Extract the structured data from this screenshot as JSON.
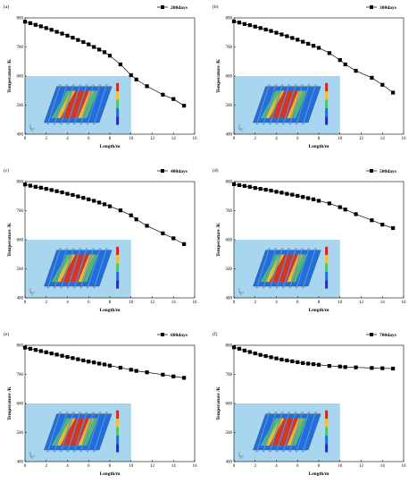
{
  "figure_title": "",
  "colors": {
    "line": "#000000",
    "marker": "#000000",
    "inset_bg": "#a9d6ef",
    "contour_hot": "#d7261e",
    "contour_warm": "#f2c02c",
    "contour_mid": "#4fc36b",
    "contour_cool": "#1f6fe0",
    "contour_cold": "#2430b0"
  },
  "chart_data": [
    {
      "type": "line",
      "panel": "(a)",
      "legend": "200days",
      "xlabel": "Length/m",
      "ylabel": "Temperature /K",
      "xlim": [
        0,
        16
      ],
      "ylim": [
        400,
        800
      ],
      "xticks": [
        "0",
        "2",
        "4",
        "6",
        "8",
        "10",
        "12",
        "14",
        "16"
      ],
      "yticks": [
        "400",
        "500",
        "600",
        "700",
        "800"
      ],
      "inset": "temperature contour of multi-fracture reservoir with color bar",
      "series": [
        {
          "name": "200days",
          "x": [
            0,
            0.5,
            1,
            1.5,
            2,
            2.5,
            3,
            3.5,
            4,
            4.5,
            5,
            5.5,
            6,
            6.5,
            7,
            7.5,
            8,
            9,
            10,
            10.5,
            11.5,
            13,
            14,
            15
          ],
          "y": [
            787,
            782,
            776,
            771,
            765,
            759,
            752,
            746,
            739,
            732,
            724,
            717,
            709,
            700,
            691,
            682,
            670,
            640,
            603,
            588,
            565,
            536,
            521,
            498
          ]
        }
      ]
    },
    {
      "type": "line",
      "panel": "(b)",
      "legend": "300days",
      "xlabel": "Length/m",
      "ylabel": "Temperature /K",
      "xlim": [
        0,
        16
      ],
      "ylim": [
        400,
        800
      ],
      "xticks": [
        "0",
        "2",
        "4",
        "6",
        "8",
        "10",
        "12",
        "14",
        "16"
      ],
      "yticks": [
        "400",
        "500",
        "600",
        "700",
        "800"
      ],
      "inset": "temperature contour of multi-fracture reservoir with color bar",
      "series": [
        {
          "name": "300days",
          "x": [
            0,
            0.5,
            1,
            1.5,
            2,
            2.5,
            3,
            3.5,
            4,
            4.5,
            5,
            5.5,
            6,
            6.5,
            7,
            7.5,
            8,
            9,
            10,
            10.5,
            11.5,
            13,
            14,
            15
          ],
          "y": [
            788,
            784,
            779,
            775,
            770,
            765,
            760,
            755,
            749,
            743,
            737,
            731,
            725,
            718,
            711,
            704,
            697,
            679,
            655,
            640,
            618,
            594,
            570,
            543
          ]
        }
      ]
    },
    {
      "type": "line",
      "panel": "(c)",
      "legend": "400days",
      "xlabel": "Length/m",
      "ylabel": "Temperature /K",
      "xlim": [
        0,
        16
      ],
      "ylim": [
        400,
        800
      ],
      "xticks": [
        "0",
        "2",
        "4",
        "6",
        "8",
        "10",
        "12",
        "14",
        "16"
      ],
      "yticks": [
        "400",
        "500",
        "600",
        "700",
        "800"
      ],
      "inset": "temperature contour of multi-fracture reservoir with color bar",
      "series": [
        {
          "name": "400days",
          "x": [
            0,
            0.5,
            1,
            1.5,
            2,
            2.5,
            3,
            3.5,
            4,
            4.5,
            5,
            5.5,
            6,
            6.5,
            7,
            7.5,
            8,
            9,
            10,
            10.5,
            11.5,
            13,
            14,
            15
          ],
          "y": [
            790,
            786,
            782,
            779,
            775,
            771,
            767,
            763,
            758,
            754,
            749,
            744,
            739,
            734,
            728,
            722,
            715,
            701,
            684,
            670,
            648,
            622,
            605,
            585
          ]
        }
      ]
    },
    {
      "type": "line",
      "panel": "(d)",
      "legend": "500days",
      "xlabel": "Length/m",
      "ylabel": "Temperature /K",
      "xlim": [
        0,
        16
      ],
      "ylim": [
        400,
        800
      ],
      "xticks": [
        "0",
        "2",
        "4",
        "6",
        "8",
        "10",
        "12",
        "14",
        "16"
      ],
      "yticks": [
        "400",
        "500",
        "600",
        "700",
        "800"
      ],
      "inset": "temperature contour of multi-fracture reservoir with color bar",
      "series": [
        {
          "name": "500days",
          "x": [
            0,
            0.5,
            1,
            1.5,
            2,
            2.5,
            3,
            3.5,
            4,
            4.5,
            5,
            5.5,
            6,
            6.5,
            7,
            7.5,
            8,
            9,
            10,
            10.5,
            11.5,
            13,
            14,
            15
          ],
          "y": [
            791,
            788,
            785,
            782,
            778,
            775,
            772,
            769,
            765,
            762,
            758,
            755,
            751,
            747,
            743,
            739,
            734,
            725,
            712,
            704,
            688,
            667,
            652,
            640
          ]
        }
      ]
    },
    {
      "type": "line",
      "panel": "(e)",
      "legend": "600days",
      "xlabel": "Length/m",
      "ylabel": "Temperature /K",
      "xlim": [
        0,
        16
      ],
      "ylim": [
        400,
        800
      ],
      "xticks": [
        "0",
        "2",
        "4",
        "6",
        "8",
        "10",
        "12",
        "14",
        "16"
      ],
      "yticks": [
        "400",
        "500",
        "600",
        "700",
        "800"
      ],
      "inset": "temperature contour of multi-fracture reservoir with color bar",
      "series": [
        {
          "name": "600days",
          "x": [
            0,
            0.5,
            1,
            1.5,
            2,
            2.5,
            3,
            3.5,
            4,
            4.5,
            5,
            5.5,
            6,
            6.5,
            7,
            7.5,
            8,
            9,
            10,
            10.5,
            11.5,
            13,
            14,
            15
          ],
          "y": [
            792,
            788,
            784,
            780,
            776,
            772,
            768,
            764,
            760,
            756,
            752,
            748,
            744,
            741,
            737,
            734,
            730,
            723,
            716,
            712,
            707,
            699,
            693,
            688
          ]
        }
      ]
    },
    {
      "type": "line",
      "panel": "(f)",
      "legend": "700days",
      "xlabel": "Length/m",
      "ylabel": "Temperature /K",
      "xlim": [
        0,
        16
      ],
      "ylim": [
        400,
        800
      ],
      "xticks": [
        "0",
        "2",
        "4",
        "6",
        "8",
        "10",
        "12",
        "14",
        "16"
      ],
      "yticks": [
        "400",
        "500",
        "600",
        "700",
        "800"
      ],
      "inset": "temperature contour of multi-fracture reservoir with color bar",
      "series": [
        {
          "name": "700days",
          "x": [
            0,
            0.5,
            1,
            1.5,
            2,
            2.5,
            3,
            3.5,
            4,
            4.5,
            5,
            5.5,
            6,
            6.5,
            7,
            7.5,
            8,
            9,
            10,
            10.5,
            11.5,
            13,
            14,
            15
          ],
          "y": [
            793,
            788,
            782,
            777,
            772,
            767,
            763,
            759,
            755,
            751,
            748,
            745,
            742,
            739,
            737,
            735,
            733,
            729,
            727,
            725,
            724,
            722,
            721,
            720
          ]
        }
      ]
    }
  ]
}
